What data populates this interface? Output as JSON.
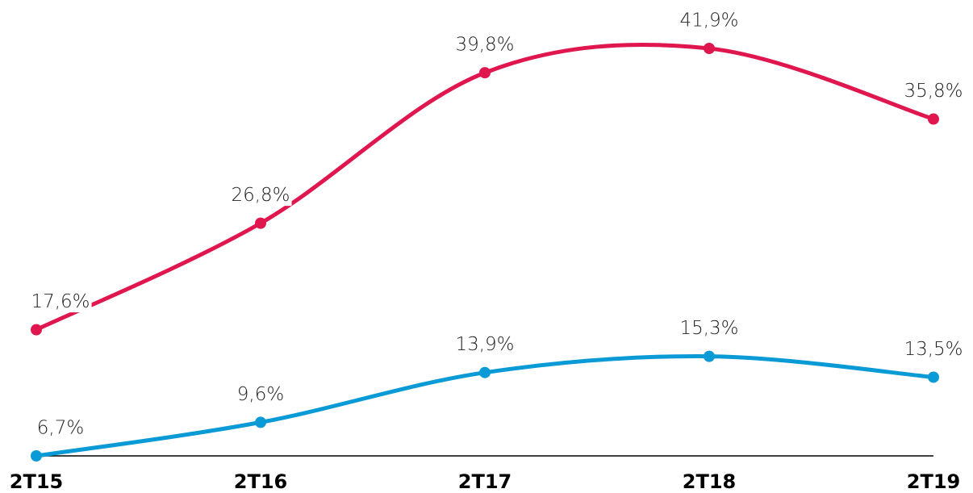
{
  "chart_data": {
    "type": "line",
    "categories": [
      "2T15",
      "2T16",
      "2T17",
      "2T18",
      "2T19"
    ],
    "series": [
      {
        "color": "#e0174f",
        "values": [
          17.6,
          26.8,
          39.8,
          41.9,
          35.8
        ],
        "value_labels": [
          "17,6%",
          "26,8%",
          "39,8%",
          "41,9%",
          "35,8%"
        ]
      },
      {
        "color": "#0a9ad6",
        "values": [
          6.7,
          9.6,
          13.9,
          15.3,
          13.5
        ],
        "value_labels": [
          "6,7%",
          "9,6%",
          "13,9%",
          "15,3%",
          "13,5%"
        ]
      }
    ]
  }
}
